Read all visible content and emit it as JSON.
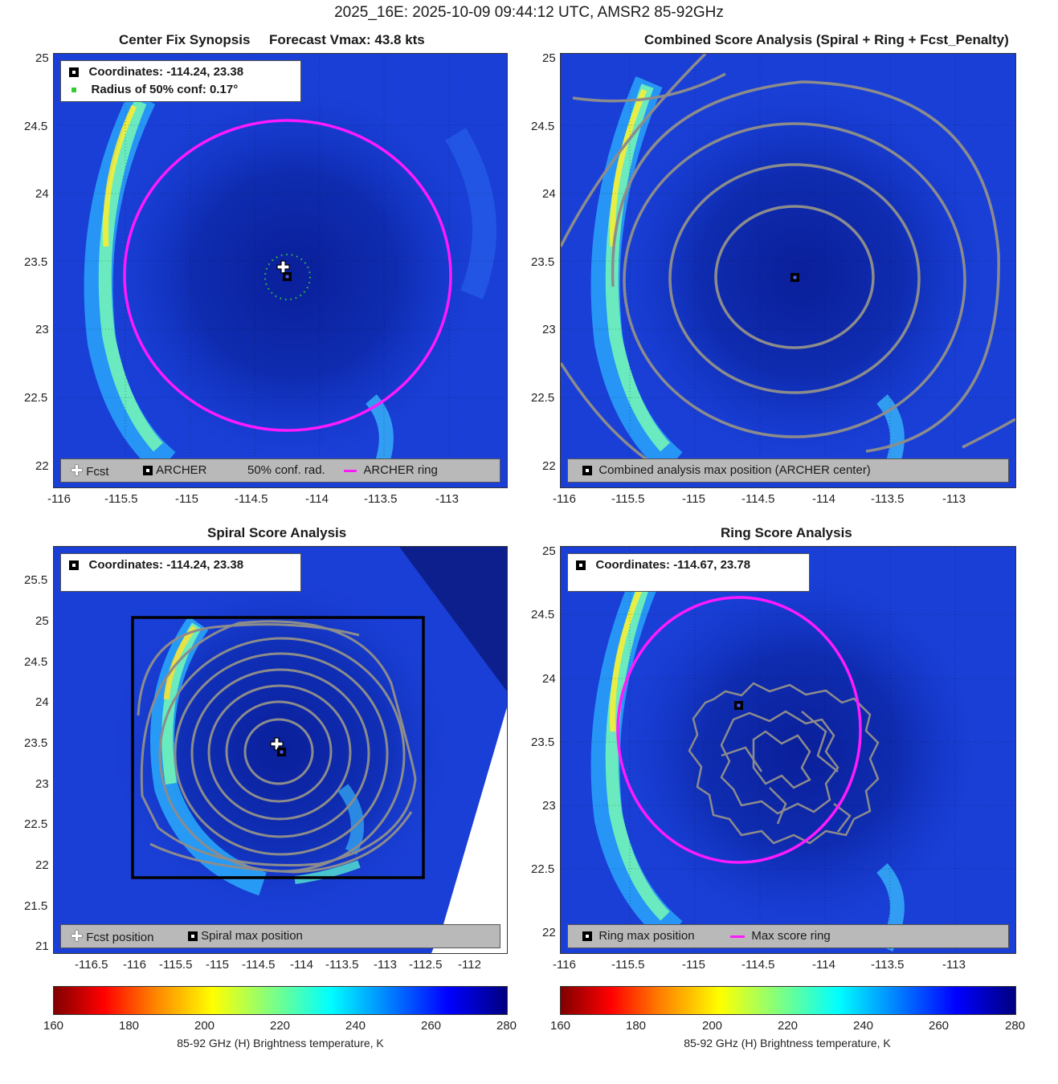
{
  "suptitle": "2025_16E: 2025-10-09 09:44:12 UTC, AMSR2 85-92GHz",
  "colors": {
    "archer_ring": "#ff1aff",
    "contour": "#8c8c8c",
    "conf_circle": "#33cc33",
    "colormap": [
      "#800000",
      "#ff0000",
      "#ff8000",
      "#ffff00",
      "#80ff80",
      "#00ffff",
      "#0080ff",
      "#0000ff",
      "#000080"
    ]
  },
  "panels": {
    "synopsis": {
      "title": "Center Fix Synopsis     Forecast Vmax: 43.8 kts",
      "legend_coords": "Coordinates: -114.24, 23.38",
      "legend_radius": "Radius of 50% conf: 0.17°",
      "bottom_legend": [
        "Fcst",
        "ARCHER",
        "50% conf. rad.",
        "ARCHER ring"
      ]
    },
    "combined": {
      "title": "Combined Score Analysis (Spiral + Ring + Fcst_Penalty)",
      "bottom_legend": [
        "Combined analysis max position (ARCHER center)"
      ]
    },
    "spiral": {
      "title": "Spiral Score Analysis",
      "legend_coords": "Coordinates: -114.24, 23.38",
      "bottom_legend": [
        "Fcst position",
        "Spiral max position"
      ]
    },
    "ring": {
      "title": "Ring Score Analysis",
      "legend_coords": "Coordinates: -114.67, 23.78",
      "bottom_legend": [
        "Ring max position",
        "Max score ring"
      ]
    }
  },
  "axes": {
    "std_x_ticks": [
      "-116",
      "-115.5",
      "-115",
      "-114.5",
      "-114",
      "-113.5",
      "-113"
    ],
    "std_y_ticks": [
      "22",
      "22.5",
      "23",
      "23.5",
      "24",
      "24.5",
      "25"
    ],
    "spiral_x_ticks": [
      "-116.5",
      "-116",
      "-115.5",
      "-115",
      "-114.5",
      "-114",
      "-113.5",
      "-113",
      "-112.5",
      "-112"
    ],
    "spiral_y_ticks": [
      "21",
      "21.5",
      "22",
      "22.5",
      "23",
      "23.5",
      "24",
      "24.5",
      "25",
      "25.5"
    ]
  },
  "colorbar": {
    "ticks": [
      "160",
      "180",
      "200",
      "220",
      "240",
      "260",
      "280"
    ],
    "label": "85-92 GHz (H) Brightness temperature, K"
  },
  "chart_data": [
    {
      "type": "heatmap",
      "title": "Center Fix Synopsis     Forecast Vmax: 43.8 kts",
      "xlim": [
        -116.2,
        -112.7
      ],
      "ylim": [
        21.85,
        25.05
      ],
      "forecast_position": [
        -114.3,
        23.42
      ],
      "archer_center": [
        -114.24,
        23.38
      ],
      "conf_radius_deg": 0.17,
      "archer_ring": {
        "center": [
          -114.24,
          23.38
        ],
        "radius_deg": 1.25
      },
      "colorbar_range": [
        160,
        280
      ]
    },
    {
      "type": "heatmap",
      "title": "Combined Score Analysis (Spiral + Ring + Fcst_Penalty)",
      "xlim": [
        -116.2,
        -112.7
      ],
      "ylim": [
        21.85,
        25.05
      ],
      "max_position": [
        -114.24,
        23.38
      ],
      "colorbar_range": [
        160,
        280
      ]
    },
    {
      "type": "heatmap",
      "title": "Spiral Score Analysis",
      "xlim": [
        -117,
        -111.5
      ],
      "ylim": [
        20.9,
        25.85
      ],
      "forecast_position": [
        -114.3,
        23.42
      ],
      "spiral_max": [
        -114.24,
        23.38
      ],
      "search_box": {
        "x": [
          -116,
          -112.5
        ],
        "y": [
          21.85,
          25.05
        ]
      },
      "colorbar_range": [
        160,
        280
      ]
    },
    {
      "type": "heatmap",
      "title": "Ring Score Analysis",
      "xlim": [
        -116.2,
        -112.7
      ],
      "ylim": [
        21.85,
        25.05
      ],
      "ring_max": [
        -114.67,
        23.78
      ],
      "max_score_ring": {
        "center": [
          -114.67,
          23.78
        ],
        "radius_deg": 0.94
      },
      "colorbar_range": [
        160,
        280
      ],
      "colorbar_label": "85-92 GHz (H) Brightness temperature, K"
    }
  ]
}
